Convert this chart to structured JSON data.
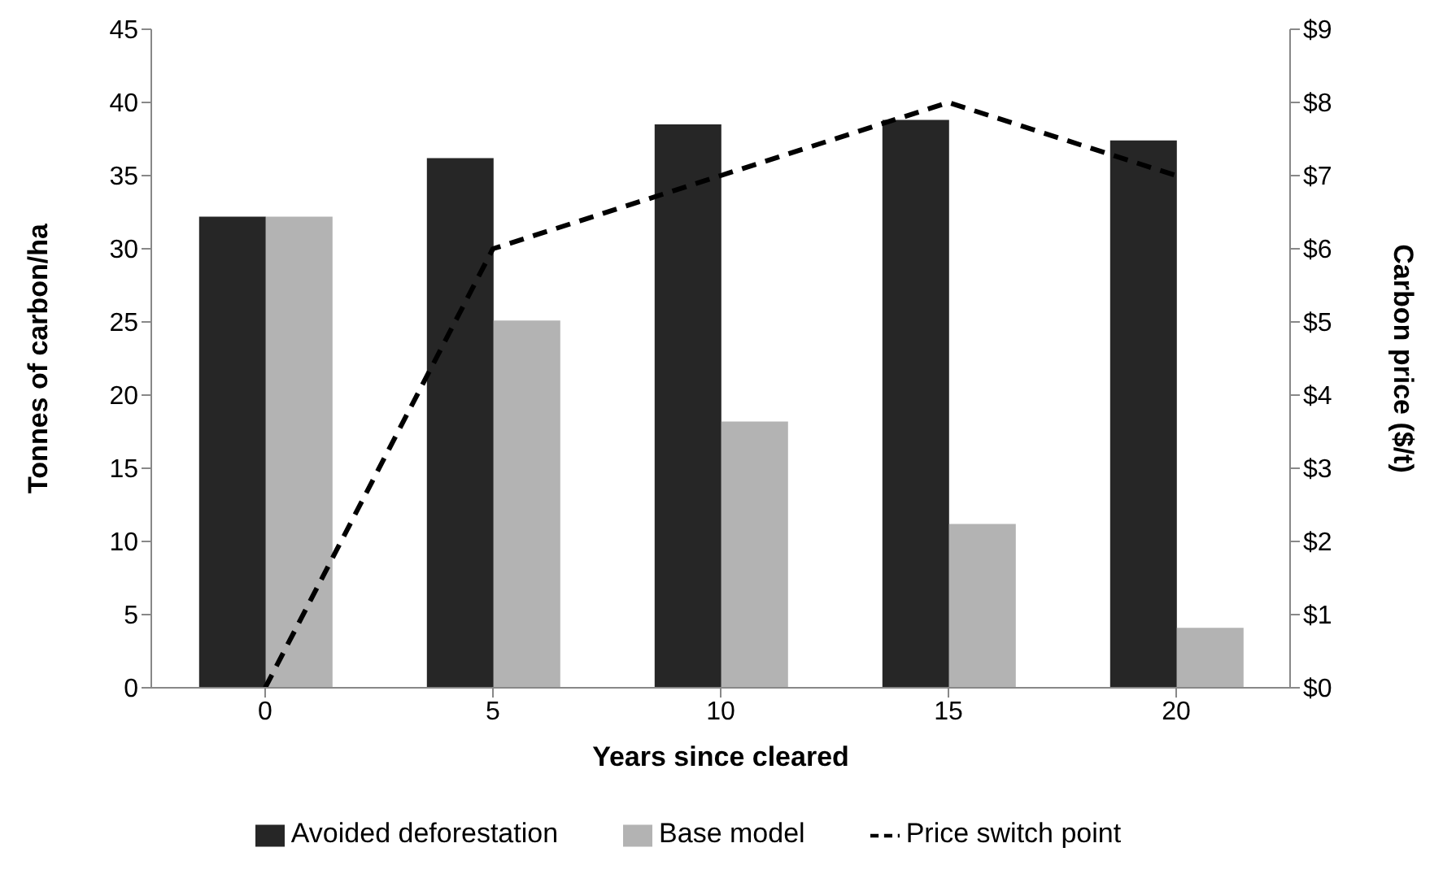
{
  "chart_data": {
    "type": "bar",
    "xlabel": "Years since cleared",
    "ylabel": "Tonnes of carbon/ha",
    "y2label": "Carbon price ($/t)",
    "categories": [
      "0",
      "5",
      "10",
      "15",
      "20"
    ],
    "series": [
      {
        "name": "Avoided deforestation",
        "color": "#262626",
        "values": [
          32.2,
          36.2,
          38.5,
          38.8,
          37.4
        ]
      },
      {
        "name": "Base model",
        "color": "#b3b3b3",
        "values": [
          32.2,
          25.1,
          18.2,
          11.2,
          4.1
        ]
      },
      {
        "name": "Price switch point",
        "type": "line",
        "axis": "y2",
        "color": "#000000",
        "line_style": "dashed",
        "marker": "none",
        "values": [
          0,
          6,
          7,
          8,
          7
        ]
      }
    ],
    "ylim": [
      0,
      45
    ],
    "yticks": [
      0,
      5,
      10,
      15,
      20,
      25,
      30,
      35,
      40,
      45
    ],
    "y2lim": [
      0,
      9
    ],
    "y2ticks": [
      {
        "value": 0,
        "label": "$0"
      },
      {
        "value": 1,
        "label": "$1"
      },
      {
        "value": 2,
        "label": "$2"
      },
      {
        "value": 3,
        "label": "$3"
      },
      {
        "value": 4,
        "label": "$4"
      },
      {
        "value": 5,
        "label": "$5"
      },
      {
        "value": 6,
        "label": "$6"
      },
      {
        "value": 7,
        "label": "$7"
      },
      {
        "value": 8,
        "label": "$8"
      },
      {
        "value": 9,
        "label": "$9"
      }
    ],
    "grid": false,
    "legend": "bottom"
  }
}
